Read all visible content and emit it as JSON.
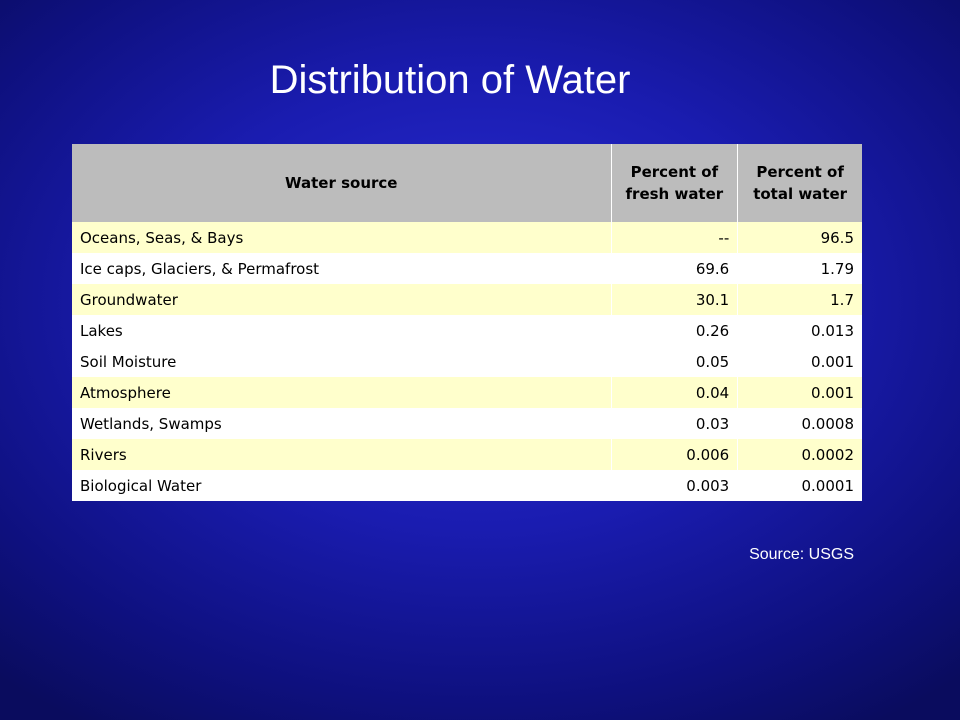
{
  "slide": {
    "title": "Distribution of Water",
    "source_note": "Source: USGS"
  },
  "table": {
    "headers": [
      "Water source",
      "Percent of fresh water",
      "Percent of total water"
    ],
    "rows": [
      {
        "source": "Oceans, Seas, & Bays",
        "fresh": "--",
        "total": "96.5"
      },
      {
        "source": "Ice caps, Glaciers, & Permafrost",
        "fresh": "69.6",
        "total": "1.79"
      },
      {
        "source": "Groundwater",
        "fresh": "30.1",
        "total": "1.7"
      },
      {
        "source": "Lakes",
        "fresh": "0.26",
        "total": "0.013"
      },
      {
        "source": "Soil Moisture",
        "fresh": "0.05",
        "total": "0.001"
      },
      {
        "source": "Atmosphere",
        "fresh": "0.04",
        "total": "0.001"
      },
      {
        "source": "Wetlands, Swamps",
        "fresh": "0.03",
        "total": "0.0008"
      },
      {
        "source": "Rivers",
        "fresh": "0.006",
        "total": "0.0002"
      },
      {
        "source": "Biological Water",
        "fresh": "0.003",
        "total": "0.0001"
      }
    ]
  },
  "colors": {
    "header_fill": "#bcbcbc",
    "row_highlight": "#ffffcc",
    "row_plain": "#ffffff",
    "background": "#1a1cb0"
  }
}
